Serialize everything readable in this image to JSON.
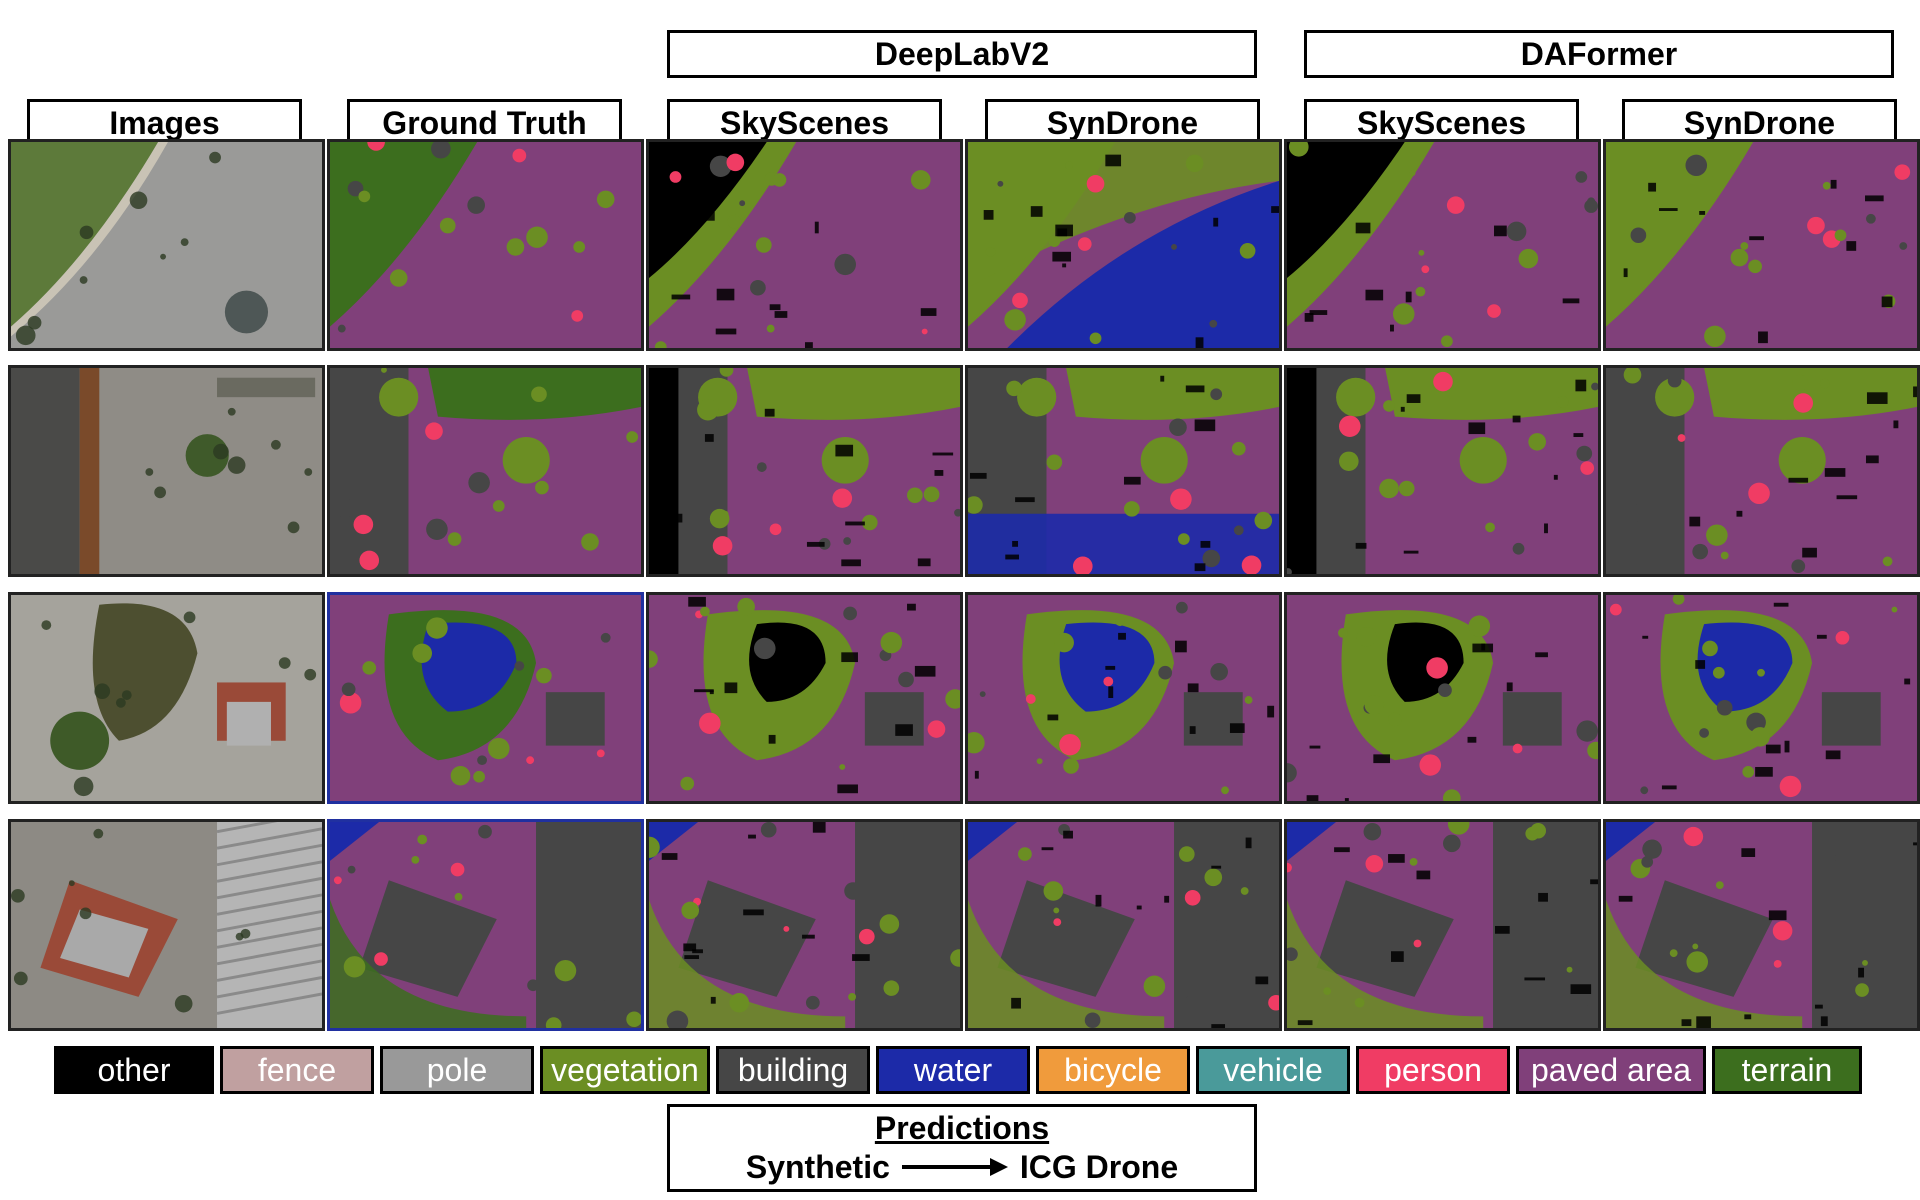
{
  "groups": [
    {
      "label": "DeepLabV2"
    },
    {
      "label": "DAFormer"
    }
  ],
  "columns": [
    {
      "label": "Images"
    },
    {
      "label": "Ground Truth"
    },
    {
      "label": "SkyScenes"
    },
    {
      "label": "SynDrone"
    },
    {
      "label": "SkyScenes"
    },
    {
      "label": "SynDrone"
    }
  ],
  "legend": [
    {
      "label": "other",
      "color": "#000000",
      "text_color": "#ffffff"
    },
    {
      "label": "fence",
      "color": "#c0a0a0",
      "text_color": "#ffffff"
    },
    {
      "label": "pole",
      "color": "#999999",
      "text_color": "#ffffff"
    },
    {
      "label": "vegetation",
      "color": "#6b8e23",
      "text_color": "#ffffff"
    },
    {
      "label": "building",
      "color": "#464646",
      "text_color": "#ffffff"
    },
    {
      "label": "water",
      "color": "#1c2aa8",
      "text_color": "#ffffff"
    },
    {
      "label": "bicycle",
      "color": "#f09b3c",
      "text_color": "#ffffff"
    },
    {
      "label": "vehicle",
      "color": "#4a9a9a",
      "text_color": "#ffffff"
    },
    {
      "label": "person",
      "color": "#f03c64",
      "text_color": "#ffffff"
    },
    {
      "label": "paved area",
      "color": "#80407a",
      "text_color": "#ffffff"
    },
    {
      "label": "terrain",
      "color": "#3c6e1e",
      "text_color": "#ffffff"
    }
  ],
  "caption": {
    "title": "Predictions",
    "source": "Synthetic",
    "target": "ICG Drone"
  }
}
